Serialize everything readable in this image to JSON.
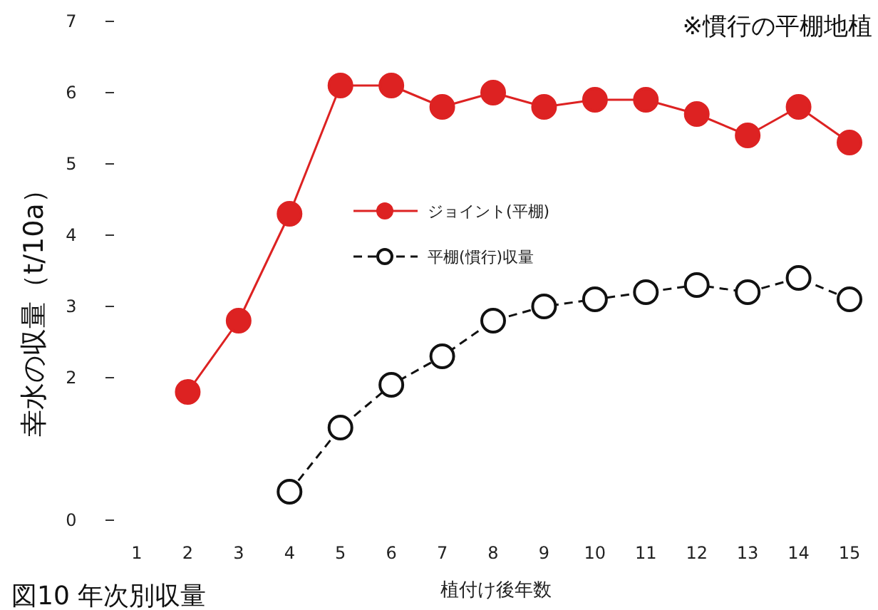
{
  "chart_data": {
    "type": "line",
    "title": "図10 年次別収量",
    "xlabel": "植付け後年数",
    "ylabel": "幸水の収量（t/10a）",
    "annotations": [
      "※慣行の平棚地植"
    ],
    "xlim": [
      1,
      15
    ],
    "ylim": [
      0,
      7
    ],
    "xticks": [
      1,
      2,
      3,
      4,
      5,
      6,
      7,
      8,
      9,
      10,
      11,
      12,
      13,
      14,
      15
    ],
    "yticks": [
      0,
      2,
      3,
      4,
      5,
      6,
      7
    ],
    "legend": "top left",
    "grid": false,
    "series": [
      {
        "name": "ジョイント(平棚)",
        "color": "#dd2222",
        "marker": "circle",
        "line_style": "solid",
        "x": [
          2,
          3,
          4,
          5,
          6,
          7,
          8,
          9,
          10,
          11,
          12,
          13,
          14,
          15
        ],
        "values": [
          1.8,
          2.8,
          4.3,
          6.1,
          6.1,
          5.8,
          6.0,
          5.8,
          5.9,
          5.9,
          5.7,
          5.4,
          5.8,
          5.3
        ]
      },
      {
        "name": "平棚(慣行)収量",
        "color": "#111111",
        "marker": "circle",
        "line_style": "dashed",
        "x": [
          4,
          5,
          6,
          7,
          8,
          9,
          10,
          11,
          12,
          13,
          14,
          15
        ],
        "values": [
          0.4,
          1.3,
          1.9,
          2.3,
          2.8,
          3.0,
          3.1,
          3.2,
          3.3,
          3.2,
          3.4,
          3.1
        ]
      }
    ]
  }
}
